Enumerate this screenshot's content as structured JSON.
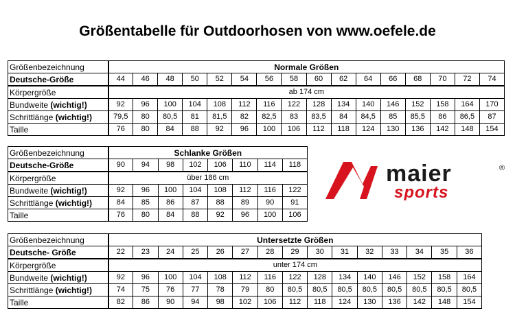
{
  "title": "Größentabelle für Outdoorhosen von www.oefele.de",
  "labels": {
    "bezeichnung": "Größenbezeichnung",
    "deutsche": "Deutsche-Größe",
    "deutsche_t3": "Deutsche- Größe",
    "koerper": "Körpergröße",
    "bundweite": "Bundweite",
    "schritt": "Schrittlänge",
    "wichtig": "(wichtig!)",
    "taille": "Taille"
  },
  "tables": [
    {
      "heading": "Normale Größen",
      "sizes": [
        "44",
        "46",
        "48",
        "50",
        "52",
        "54",
        "56",
        "58",
        "60",
        "62",
        "64",
        "66",
        "68",
        "70",
        "72",
        "74"
      ],
      "koerper": "ab 174 cm",
      "bundweite": [
        "92",
        "96",
        "100",
        "104",
        "108",
        "112",
        "116",
        "122",
        "128",
        "134",
        "140",
        "146",
        "152",
        "158",
        "164",
        "170"
      ],
      "schritt": [
        "79,5",
        "80",
        "80,5",
        "81",
        "81,5",
        "82",
        "82,5",
        "83",
        "83,5",
        "84",
        "84,5",
        "85",
        "85,5",
        "86",
        "86,5",
        "87"
      ],
      "taille": [
        "76",
        "80",
        "84",
        "88",
        "92",
        "96",
        "100",
        "106",
        "112",
        "118",
        "124",
        "130",
        "136",
        "142",
        "148",
        "154"
      ]
    },
    {
      "heading": "Schlanke Größen",
      "sizes": [
        "90",
        "94",
        "98",
        "102",
        "106",
        "110",
        "114",
        "118"
      ],
      "koerper": "über 186 cm",
      "bundweite": [
        "92",
        "96",
        "100",
        "104",
        "108",
        "112",
        "116",
        "122"
      ],
      "schritt": [
        "84",
        "85",
        "86",
        "87",
        "88",
        "89",
        "90",
        "91"
      ],
      "taille": [
        "76",
        "80",
        "84",
        "88",
        "92",
        "96",
        "100",
        "106"
      ]
    },
    {
      "heading": "Untersetzte Größen",
      "sizes": [
        "22",
        "23",
        "24",
        "25",
        "26",
        "27",
        "28",
        "29",
        "30",
        "31",
        "32",
        "33",
        "34",
        "35",
        "36"
      ],
      "koerper": "unter 174 cm",
      "bundweite": [
        "92",
        "96",
        "100",
        "104",
        "108",
        "112",
        "116",
        "122",
        "128",
        "134",
        "140",
        "146",
        "152",
        "158",
        "164"
      ],
      "schritt": [
        "74",
        "75",
        "76",
        "77",
        "78",
        "79",
        "80",
        "80,5",
        "80,5",
        "80,5",
        "80,5",
        "80,5",
        "80,5",
        "80,5",
        "80,5"
      ],
      "taille": [
        "82",
        "86",
        "90",
        "94",
        "98",
        "102",
        "106",
        "112",
        "118",
        "124",
        "130",
        "136",
        "142",
        "148",
        "154"
      ]
    }
  ],
  "logo": {
    "brand_top": "maier",
    "brand_bottom": "sports",
    "registered": "®",
    "color_red": "#d7141e",
    "color_dark": "#1a1a1a"
  }
}
